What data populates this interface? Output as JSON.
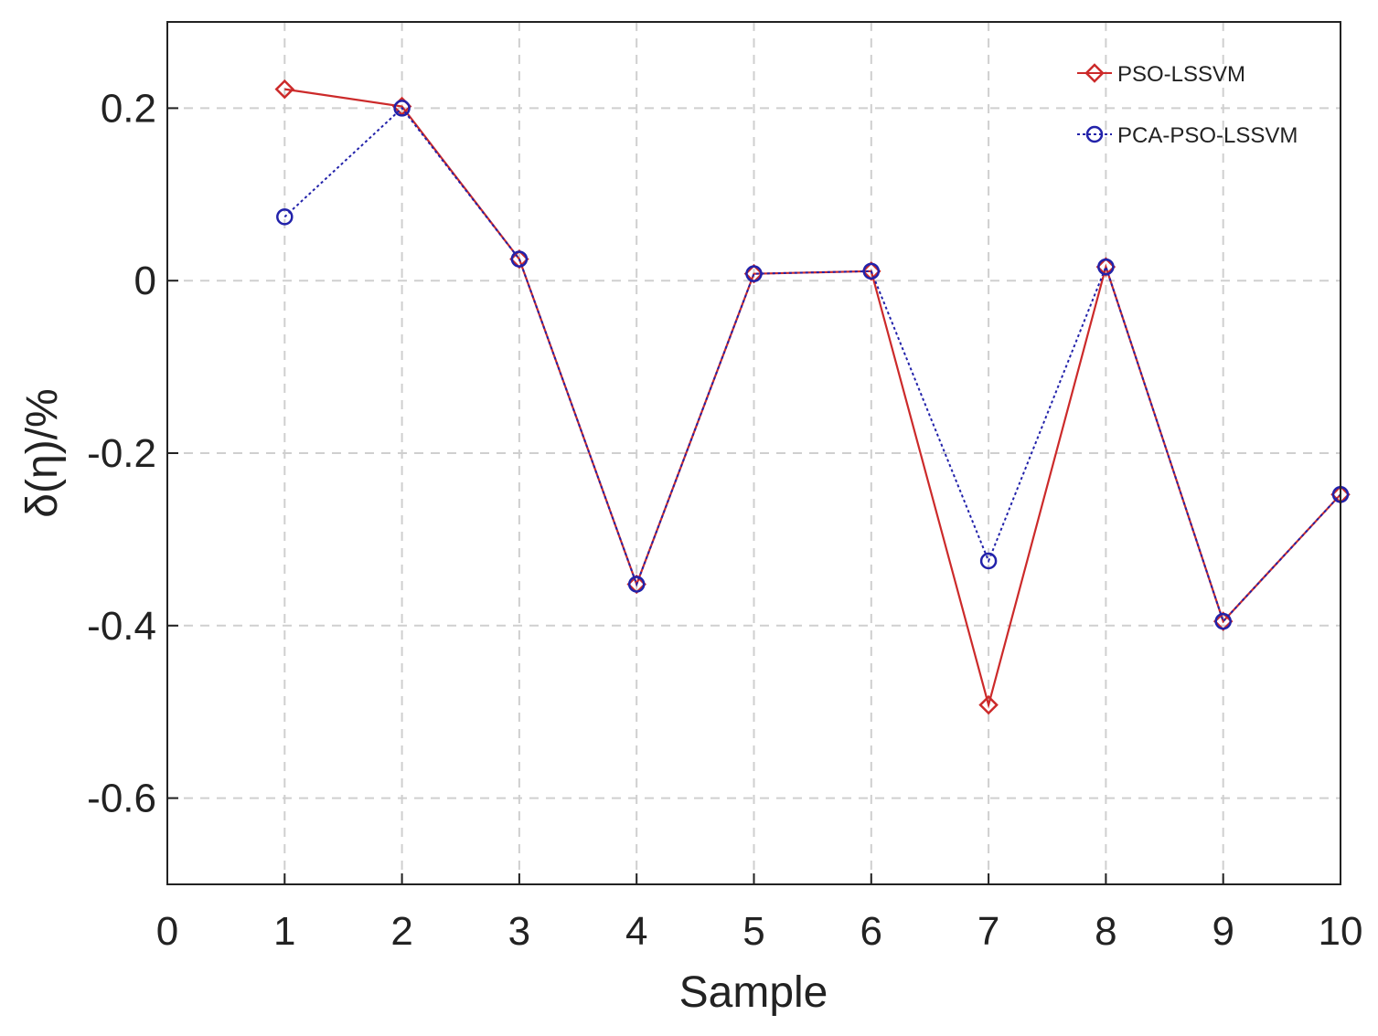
{
  "chart_data": {
    "type": "line",
    "title": "",
    "xlabel": "Sample",
    "ylabel": "δ(η)/%",
    "xlim": [
      0,
      10
    ],
    "ylim": [
      -0.7,
      0.3
    ],
    "xticks": [
      0,
      1,
      2,
      3,
      4,
      5,
      6,
      7,
      8,
      9,
      10
    ],
    "xtick_labels": [
      "0",
      "1",
      "2",
      "3",
      "4",
      "5",
      "6",
      "7",
      "8",
      "9",
      "10"
    ],
    "yticks": [
      0.2,
      0,
      -0.2,
      -0.4,
      -0.6
    ],
    "ytick_labels": [
      "0.2",
      "0",
      "-0.2",
      "-0.4",
      "-0.6"
    ],
    "grid": true,
    "legend_position": "top-right",
    "x": [
      1,
      2,
      3,
      4,
      5,
      6,
      7,
      8,
      9,
      10
    ],
    "series": [
      {
        "name": "PSO-LSSVM",
        "values": [
          0.222,
          0.202,
          0.025,
          -0.352,
          0.008,
          0.011,
          -0.492,
          0.016,
          -0.395,
          -0.248
        ],
        "color": "#cc2a2a",
        "marker": "diamond",
        "line_style": "solid"
      },
      {
        "name": "PCA-PSO-LSSVM",
        "values": [
          0.074,
          0.2,
          0.025,
          -0.352,
          0.008,
          0.011,
          -0.325,
          0.016,
          -0.395,
          -0.248
        ],
        "color": "#2222aa",
        "marker": "circle",
        "line_style": "dotted"
      }
    ]
  }
}
